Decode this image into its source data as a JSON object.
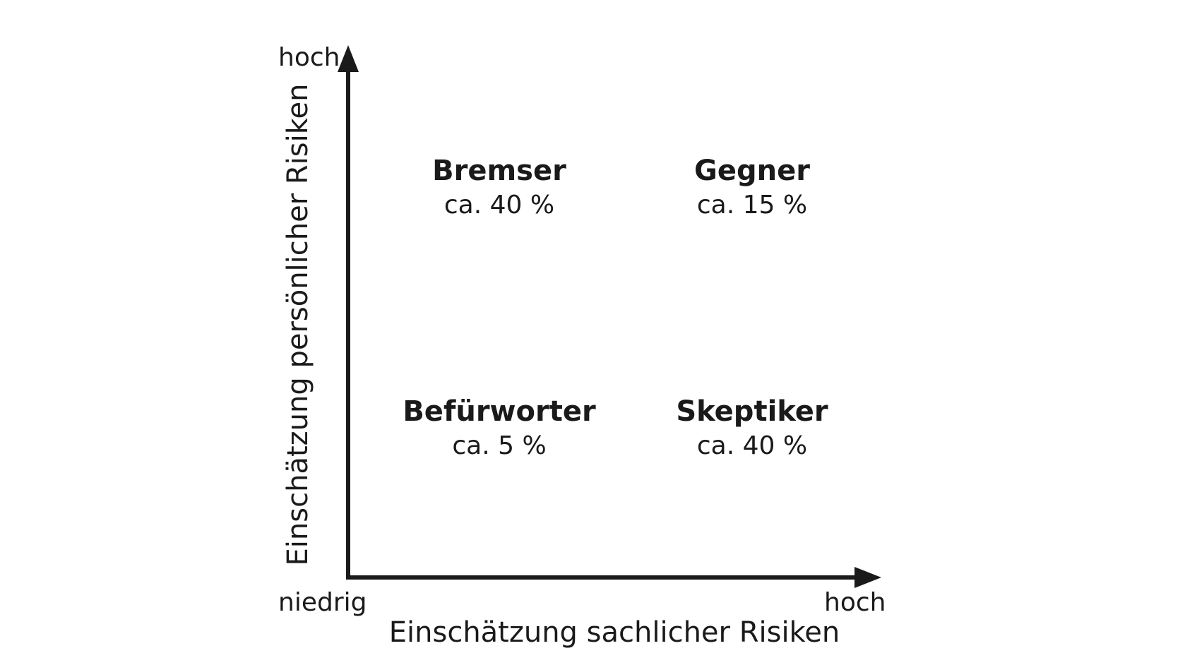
{
  "colors": {
    "ink": "#1a1a1a",
    "background": "#ffffff"
  },
  "axes": {
    "y_high_label": "hoch",
    "origin_label": "niedrig",
    "x_high_label": "hoch",
    "x_title": "Einschätzung sachlicher Risiken",
    "y_title": "Einschätzung persönlicher Risiken"
  },
  "quadrants": {
    "top_left": {
      "name": "Bremser",
      "share": "ca. 40 %"
    },
    "top_right": {
      "name": "Gegner",
      "share": "ca. 15 %"
    },
    "bottom_left": {
      "name": "Befürworter",
      "share": "ca. 5 %"
    },
    "bottom_right": {
      "name": "Skeptiker",
      "share": "ca. 40 %"
    }
  }
}
